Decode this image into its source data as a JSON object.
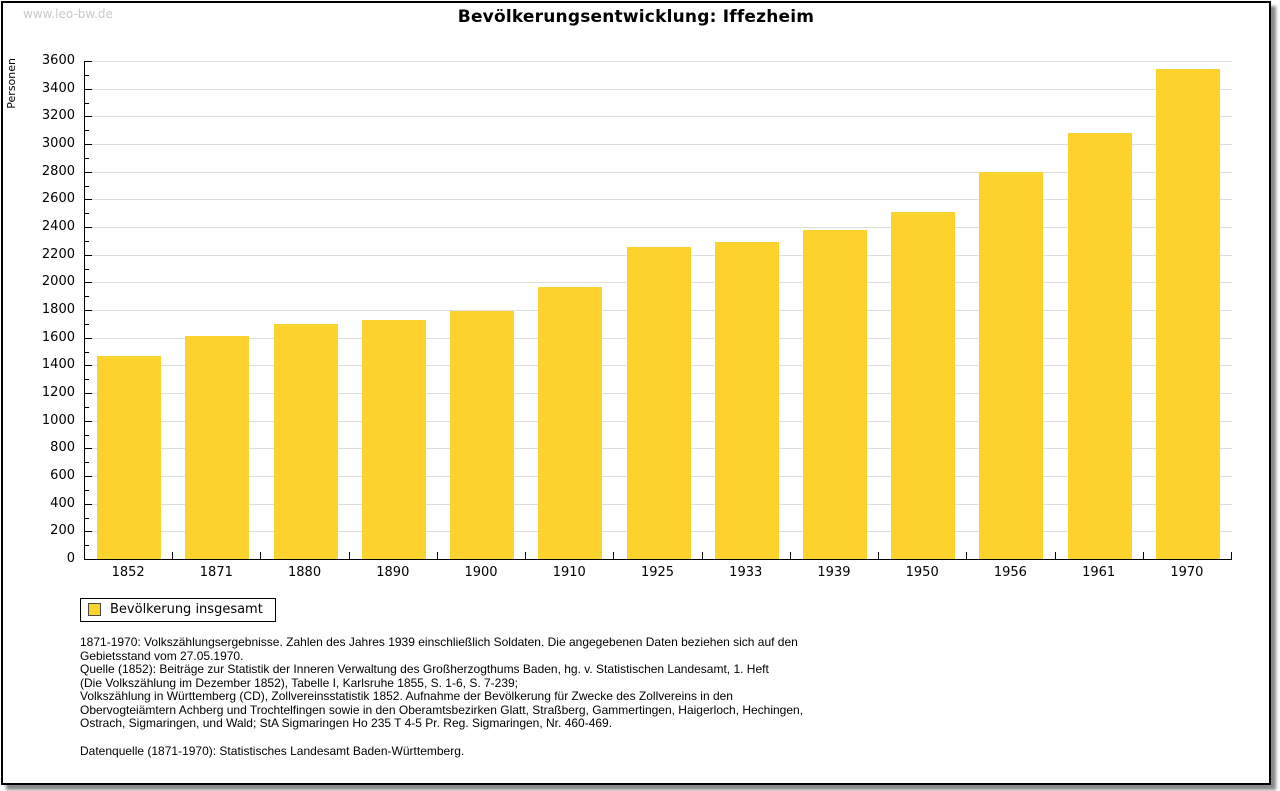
{
  "page": {
    "watermark": "www.leo-bw.de",
    "title": "Bevölkerungsentwicklung: Iffezheim"
  },
  "chart_data": {
    "type": "bar",
    "title": "Bevölkerungsentwicklung: Iffezheim",
    "xlabel": "",
    "ylabel": "Personen",
    "categories": [
      "1852",
      "1871",
      "1880",
      "1890",
      "1900",
      "1910",
      "1925",
      "1933",
      "1939",
      "1950",
      "1956",
      "1961",
      "1970"
    ],
    "series": [
      {
        "name": "Bevölkerung insgesamt",
        "values": [
          1470,
          1614,
          1700,
          1730,
          1790,
          1968,
          2255,
          2292,
          2380,
          2510,
          2795,
          3082,
          3540
        ]
      }
    ],
    "ylim": [
      0,
      3600
    ],
    "ytick_step": 200,
    "yminor_step": 100,
    "grid": true,
    "legend_position": "bottom-left",
    "bar_color": "#FCD32C"
  },
  "legend": {
    "items": [
      {
        "label": "Bevölkerung insgesamt",
        "color": "#FCD32C"
      }
    ]
  },
  "footnotes": {
    "lines": [
      "1871-1970: Volkszählungsergebnisse. Zahlen des Jahres 1939 einschließlich Soldaten. Die angegebenen Daten beziehen sich auf den",
      "Gebietsstand vom 27.05.1970.",
      "Quelle (1852): Beiträge zur Statistik der Inneren Verwaltung des Großherzogthums Baden, hg. v. Statistischen Landesamt, 1. Heft",
      "(Die Volkszählung im Dezember 1852), Tabelle I, Karlsruhe 1855, S. 1-6, S. 7-239;",
      "Volkszählung in Württemberg (CD), Zollvereinsstatistik 1852. Aufnahme der Bevölkerung für Zwecke des Zollvereins in den",
      "Obervogteiämtern Achberg und Trochtelfingen sowie in den Oberamtsbezirken Glatt, Straßberg, Gammertingen, Haigerloch, Hechingen,",
      "Ostrach, Sigmaringen, und Wald; StA Sigmaringen Ho 235 T 4-5 Pr. Reg. Sigmaringen, Nr. 460-469."
    ],
    "datasource": "Datenquelle (1871-1970): Statistisches Landesamt Baden-Württemberg."
  },
  "colors": {
    "bar": "#FCD32C",
    "grid": "#DEDEDE",
    "axis": "#000000",
    "watermark": "#C9C9C9",
    "shadow": "#8A8A8A"
  }
}
